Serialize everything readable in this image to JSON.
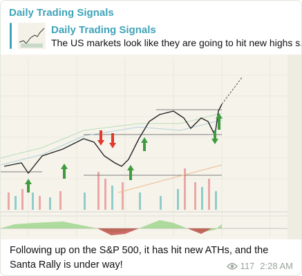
{
  "header": {
    "title": "Daily Trading Signals"
  },
  "reply": {
    "title": "Daily Trading Signals",
    "text": "The US markets look like they are going to hit new highs s..."
  },
  "message": {
    "text": "Following up on the S&P 500, it has hit new ATHs, and the Santa Rally is under way!",
    "views": 117,
    "time": "2:28 AM"
  }
}
